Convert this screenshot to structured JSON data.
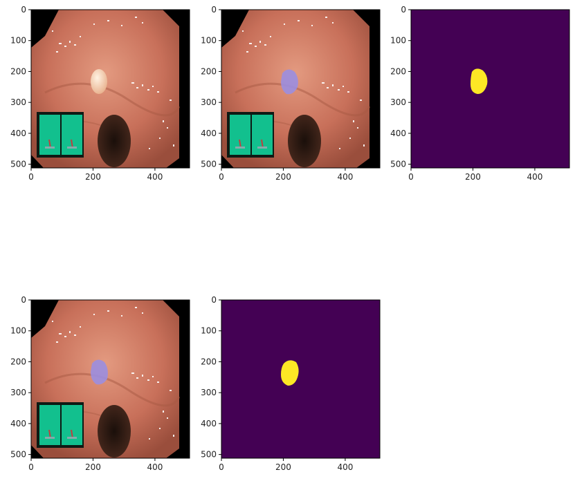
{
  "figure": {
    "panels": [
      {
        "kind": "endoscopy-image",
        "x_ticks": [
          "0",
          "200",
          "400"
        ],
        "y_ticks": [
          "0",
          "100",
          "200",
          "300",
          "400",
          "500"
        ],
        "overlay": false
      },
      {
        "kind": "endoscopy-overlay",
        "x_ticks": [
          "0",
          "200",
          "400"
        ],
        "y_ticks": [
          "0",
          "100",
          "200",
          "300",
          "400",
          "500"
        ],
        "overlay": true
      },
      {
        "kind": "mask",
        "x_ticks": [
          "0",
          "200",
          "400"
        ],
        "y_ticks": [
          "0",
          "100",
          "200",
          "300",
          "400",
          "500"
        ]
      },
      {
        "kind": "endoscopy-overlay",
        "x_ticks": [
          "0",
          "200",
          "400"
        ],
        "y_ticks": [
          "0",
          "100",
          "200",
          "300",
          "400",
          "500"
        ],
        "overlay": true
      },
      {
        "kind": "mask",
        "x_ticks": [
          "0",
          "200",
          "400"
        ],
        "y_ticks": [
          "0",
          "100",
          "200",
          "300",
          "400",
          "500"
        ]
      }
    ],
    "colors": {
      "tissue": "#c8705a",
      "tissue_light": "#e0937a",
      "lumen": "#2a1a12",
      "inset": "#12c08e",
      "polyp": "#f0c8a8",
      "overlay": "#9b8ee0",
      "mask_bg": "#440154",
      "mask_fg": "#fde725"
    }
  }
}
